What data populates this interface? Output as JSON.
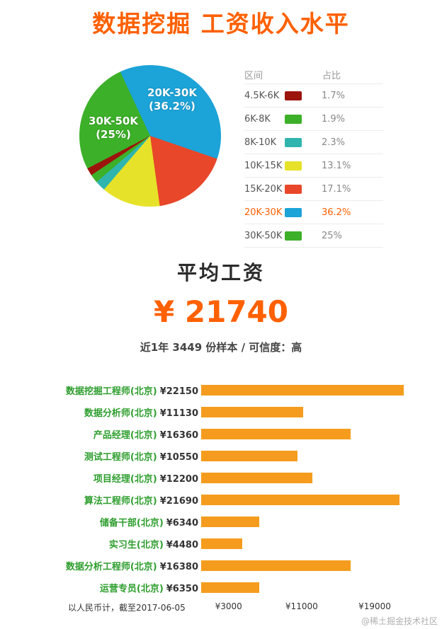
{
  "page": {
    "title": "数据挖掘 工资收入水平",
    "watermark": "@稀土掘金技术社区"
  },
  "average": {
    "heading": "平均工资",
    "value": "¥ 21740",
    "note": "近1年 3449 份样本 / 可信度：高"
  },
  "colors": {
    "accent_orange": "#ff6000",
    "bar_orange": "#f59c1e",
    "job_label_green": "#2e9e2e"
  },
  "chart_data": [
    {
      "type": "pie",
      "legend_headers": {
        "range": "区间",
        "share": "占比"
      },
      "slices": [
        {
          "label": "4.5K-6K",
          "value": 1.7,
          "display": "1.7%",
          "color": "#9b150c"
        },
        {
          "label": "6K-8K",
          "value": 1.9,
          "display": "1.9%",
          "color": "#3cb028"
        },
        {
          "label": "8K-10K",
          "value": 2.3,
          "display": "2.3%",
          "color": "#2fb5ae"
        },
        {
          "label": "10K-15K",
          "value": 13.1,
          "display": "13.1%",
          "color": "#e6e229"
        },
        {
          "label": "15K-20K",
          "value": 17.1,
          "display": "17.1%",
          "color": "#e8472a"
        },
        {
          "label": "20K-30K",
          "value": 36.2,
          "display": "36.2%",
          "color": "#1ca3d8",
          "highlighted": true
        },
        {
          "label": "30K-50K",
          "value": 25,
          "display": "25%",
          "color": "#3cb028"
        }
      ],
      "callouts": [
        {
          "line1": "20K-30K",
          "line2": "(36.2%)"
        },
        {
          "line1": "30K-50K",
          "line2": "(25%)"
        }
      ],
      "start_angle_deg": -25,
      "draw_order": [
        5,
        4,
        3,
        2,
        1,
        0,
        6
      ],
      "legend_position": "right"
    },
    {
      "type": "bar",
      "orientation": "horizontal",
      "categories": [
        "数据挖掘工程师(北京)",
        "数据分析师(北京)",
        "产品经理(北京)",
        "测试工程师(北京)",
        "项目经理(北京)",
        "算法工程师(北京)",
        "储备干部(北京)",
        "实习生(北京)",
        "数据分析工程师(北京)",
        "运营专员(北京)"
      ],
      "values": [
        22150,
        11130,
        16360,
        10550,
        12200,
        21690,
        6340,
        4480,
        16380,
        6350
      ],
      "value_labels": [
        "¥22150",
        "¥11130",
        "¥16360",
        "¥10550",
        "¥12200",
        "¥21690",
        "¥6340",
        "¥4480",
        "¥16380",
        "¥6350"
      ],
      "axis_ticks": [
        "¥3000",
        "¥11000",
        "¥19000"
      ],
      "axis_tick_values": [
        3000,
        11000,
        19000
      ],
      "xlim": [
        0,
        22800
      ],
      "bar_color": "#f59c1e",
      "footnote": "以人民币计，截至2017-06-05"
    }
  ]
}
